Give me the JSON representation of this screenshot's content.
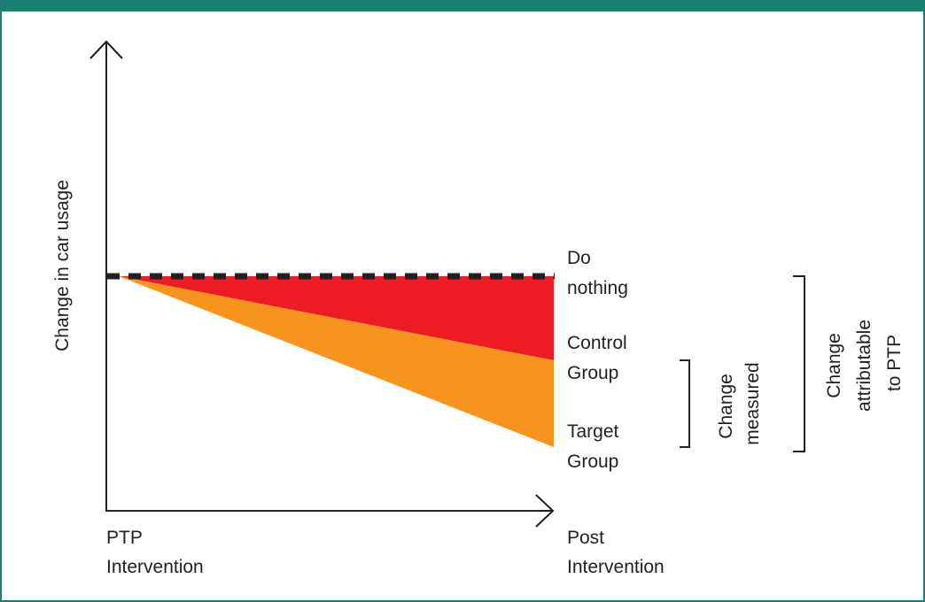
{
  "y_axis_label": "Change in car usage",
  "x_axis": {
    "start_label": [
      "PTP",
      "Intervention"
    ],
    "end_label": [
      "Post",
      "Intervention"
    ]
  },
  "lines": {
    "do_nothing": [
      "Do",
      "nothing"
    ],
    "control_group": [
      "Control",
      "Group"
    ],
    "target_group": [
      "Target",
      "Group"
    ]
  },
  "brackets": {
    "change_measured": [
      "Change",
      "measured"
    ],
    "change_attributable": [
      "Change",
      "attributable",
      "to PTP"
    ]
  },
  "colors": {
    "border": "#1c7f6f",
    "attributable_area": "#ed1c24",
    "measured_area": "#f7941d",
    "lines": "#231f20"
  }
}
